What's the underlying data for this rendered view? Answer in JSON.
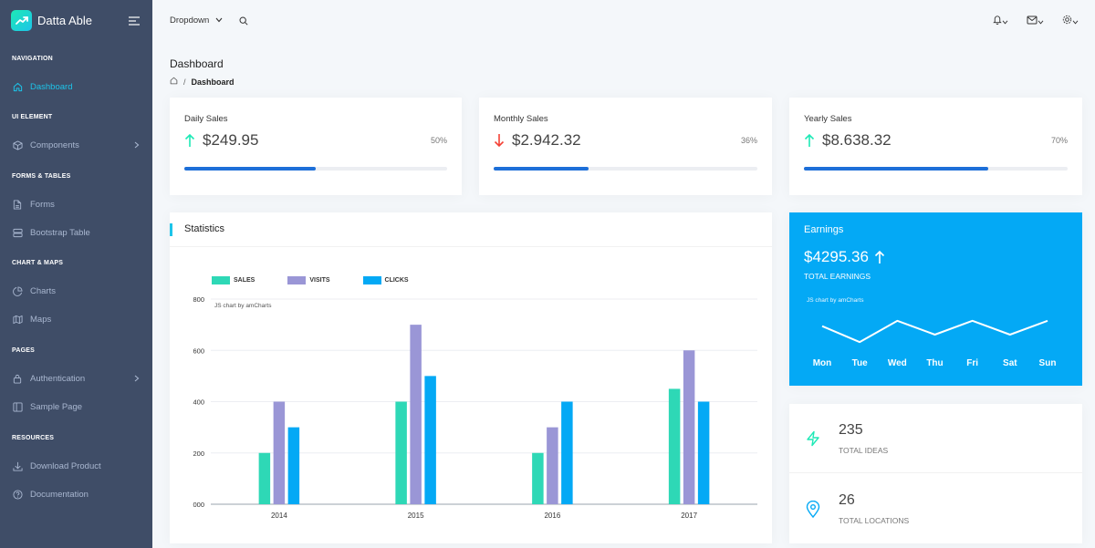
{
  "brand": {
    "name": "Datta Able"
  },
  "sidebar": {
    "captions": {
      "navigation": "NAVIGATION",
      "ui_element": "UI ELEMENT",
      "forms_tables": "FORMS & TABLES",
      "chart_maps": "CHART & MAPS",
      "pages": "PAGES",
      "resources": "RESOURCES"
    },
    "items": {
      "dashboard": "Dashboard",
      "components": "Components",
      "forms": "Forms",
      "bootstrap_table": "Bootstrap Table",
      "charts": "Charts",
      "maps": "Maps",
      "authentication": "Authentication",
      "sample_page": "Sample Page",
      "download_product": "Download Product",
      "documentation": "Documentation"
    }
  },
  "header": {
    "dropdown_label": "Dropdown"
  },
  "page": {
    "title": "Dashboard",
    "breadcrumb": {
      "separator": "/",
      "current": "Dashboard"
    }
  },
  "stats": {
    "daily": {
      "title": "Daily Sales",
      "value": "$249.95",
      "percent_label": "50%",
      "percent": 50,
      "trend": "up"
    },
    "monthly": {
      "title": "Monthly Sales",
      "value": "$2.942.32",
      "percent_label": "36%",
      "percent": 36,
      "trend": "down"
    },
    "yearly": {
      "title": "Yearly Sales",
      "value": "$8.638.32",
      "percent_label": "70%",
      "percent": 70,
      "trend": "up"
    }
  },
  "statistics": {
    "title": "Statistics",
    "credit": "JS chart by amCharts"
  },
  "chart_data": {
    "type": "bar",
    "categories": [
      "2014",
      "2015",
      "2016",
      "2017"
    ],
    "y_ticks": [
      "000",
      "200",
      "400",
      "600",
      "800"
    ],
    "ylim": [
      0,
      800
    ],
    "series": [
      {
        "name": "SALES",
        "color": "#2ed8b6",
        "values": [
          200,
          400,
          200,
          450
        ]
      },
      {
        "name": "VISITS",
        "color": "#9a96d6",
        "values": [
          400,
          700,
          300,
          600
        ]
      },
      {
        "name": "CLICKS",
        "color": "#04a9f5",
        "values": [
          300,
          500,
          400,
          400
        ]
      }
    ],
    "grid": true,
    "legend": "top-left"
  },
  "earnings": {
    "title": "Earnings",
    "value": "$4295.36",
    "label": "TOTAL EARNINGS",
    "credit": "JS chart by amCharts",
    "days": [
      "Mon",
      "Tue",
      "Wed",
      "Thu",
      "Fri",
      "Sat",
      "Sun"
    ],
    "trend": [
      60,
      45,
      65,
      52,
      65,
      52,
      65
    ]
  },
  "ideas": {
    "value": "235",
    "label": "TOTAL IDEAS"
  },
  "locations": {
    "value": "26",
    "label": "TOTAL LOCATIONS"
  },
  "colors": {
    "sidebar": "#3f4d67",
    "accent": "#1dc4e9",
    "up": "#1de9b6",
    "down": "#f44236",
    "earnings": "#04a9f5"
  },
  "icons": {
    "trend_up": "arrow-up-icon",
    "trend_down": "arrow-down-icon",
    "ideas": "zap-icon",
    "locations": "map-pin-icon"
  }
}
